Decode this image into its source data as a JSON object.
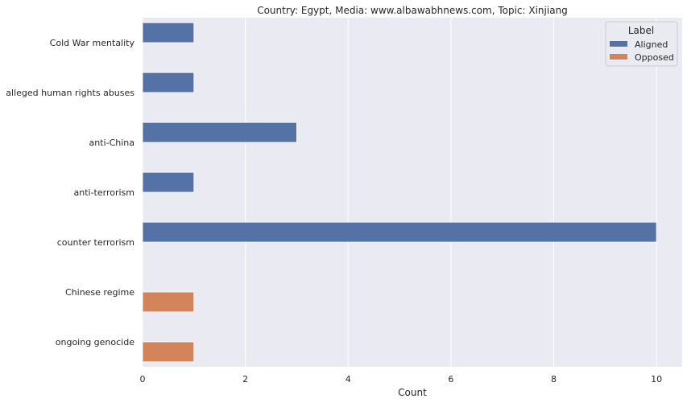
{
  "chart_data": {
    "type": "bar",
    "orientation": "horizontal",
    "title": "Country: Egypt, Media: www.albawabhnews.com, Topic: Xinjiang",
    "xlabel": "Count",
    "ylabel": "",
    "xlim": [
      0,
      10.5
    ],
    "xticks": [
      "0",
      "2",
      "4",
      "6",
      "8",
      "10"
    ],
    "grid": true,
    "legend": {
      "title": "Label",
      "placement": "top-right"
    },
    "categories": [
      "Cold War mentality",
      "alleged human rights abuses",
      "anti-China",
      "anti-terrorism",
      "counter terrorism",
      "Chinese regime",
      "ongoing genocide"
    ],
    "series": [
      {
        "name": "Aligned",
        "color": "#5572a6",
        "values": [
          1,
          1,
          3,
          1,
          10,
          0,
          0
        ]
      },
      {
        "name": "Opposed",
        "color": "#d4845a",
        "values": [
          0,
          0,
          0,
          0,
          0,
          1,
          1
        ]
      }
    ]
  }
}
